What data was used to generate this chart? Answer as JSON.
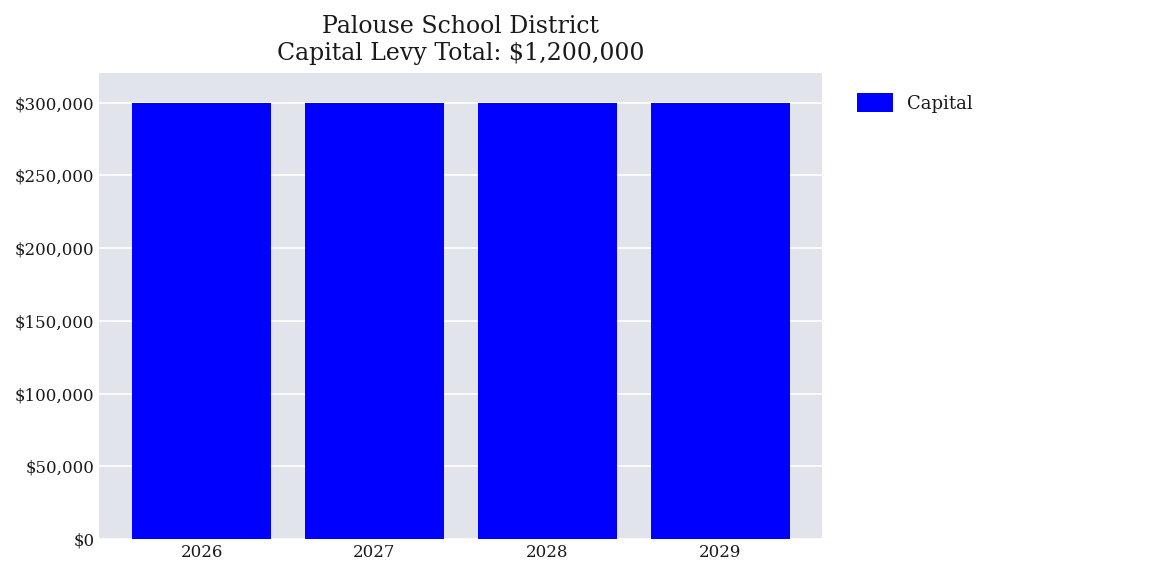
{
  "title_line1": "Palouse School District",
  "title_line2": "Capital Levy Total: $1,200,000",
  "years": [
    2026,
    2027,
    2028,
    2029
  ],
  "values": [
    300000,
    300000,
    300000,
    300000
  ],
  "bar_color": "#0000FF",
  "legend_label": "Capital",
  "ylim": [
    0,
    320000
  ],
  "yticks": [
    0,
    50000,
    100000,
    150000,
    200000,
    250000,
    300000
  ],
  "plot_bg_color": "#E2E4EC",
  "fig_bg_color": "#FFFFFF",
  "title_fontsize": 17,
  "tick_fontsize": 12,
  "legend_fontsize": 13,
  "bar_width": 0.8
}
